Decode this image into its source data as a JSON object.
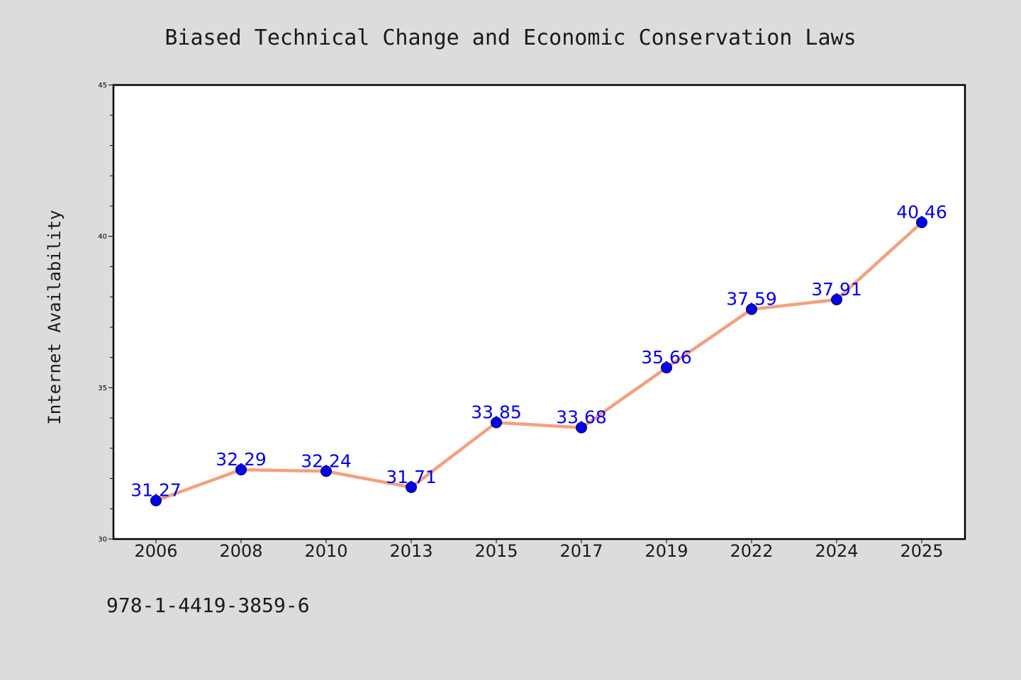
{
  "chart_data": {
    "type": "line",
    "title": "Biased Technical Change and Economic Conservation Laws",
    "ylabel": "Internet Availability",
    "xlabel": "",
    "categories": [
      "2006",
      "2008",
      "2010",
      "2013",
      "2015",
      "2017",
      "2019",
      "2022",
      "2024",
      "2025"
    ],
    "values": [
      31.27,
      32.29,
      32.24,
      31.71,
      33.85,
      33.68,
      35.66,
      37.59,
      37.91,
      40.46
    ],
    "data_labels": [
      "31.27",
      "32.29",
      "32.24",
      "31.71",
      "33.85",
      "33.68",
      "35.66",
      "37.59",
      "37.91",
      "40.46"
    ],
    "ylim": [
      30,
      45
    ],
    "yticks": [
      30,
      35,
      40,
      45
    ],
    "ytick_labels": [
      "30",
      "35",
      "40",
      "45"
    ],
    "grid": false,
    "legend": "none",
    "colors": {
      "line": "#f4a07e",
      "marker": "#0000ee",
      "label": "#0000ee",
      "background": "#dcdcdc",
      "plot_background": "#ffffff"
    }
  },
  "footer_code": "978-1-4419-3859-6"
}
